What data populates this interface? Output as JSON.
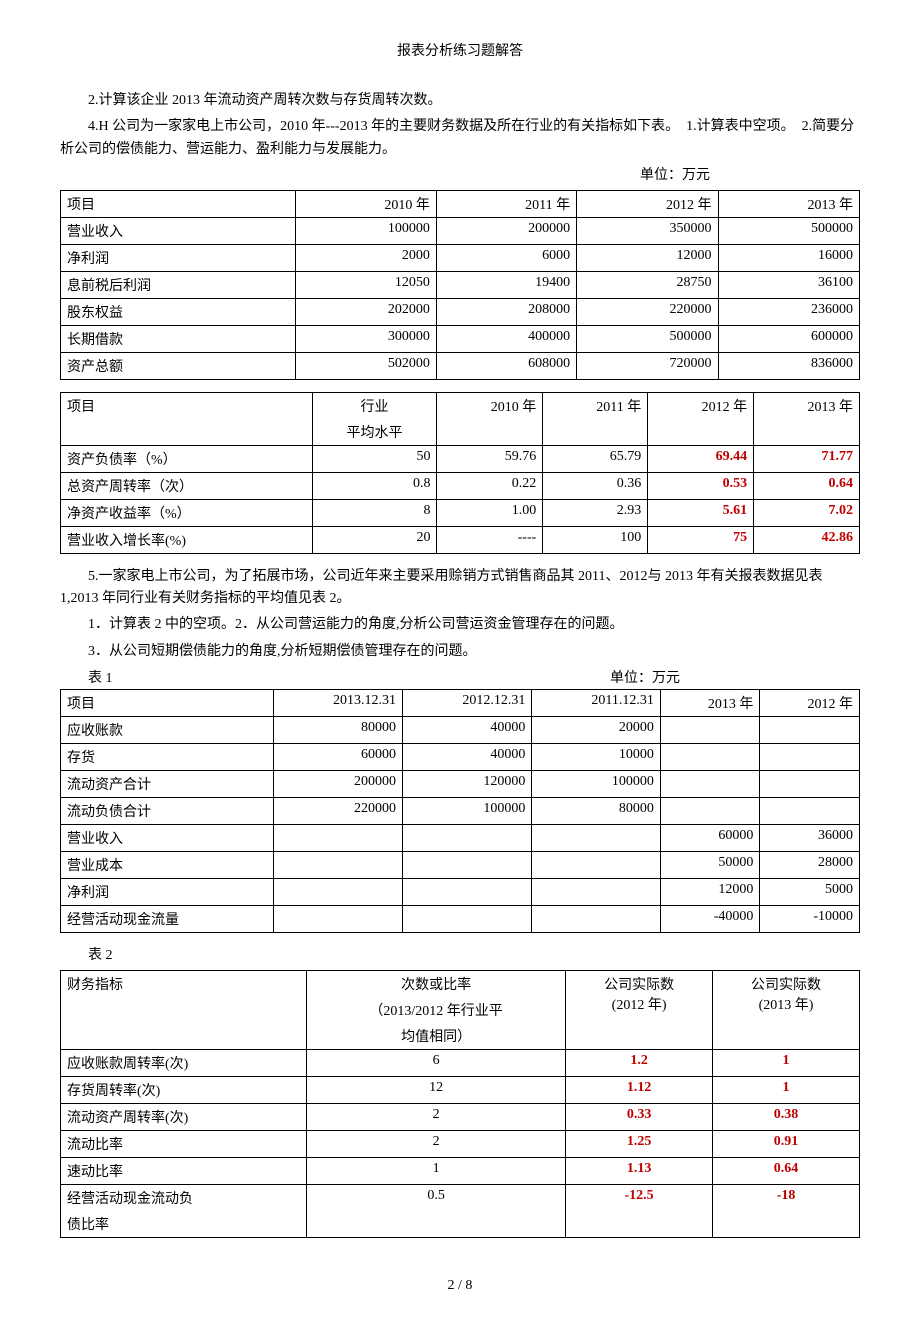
{
  "title": "报表分析练习题解答",
  "p1": "2.计算该企业 2013 年流动资产周转次数与存货周转次数。",
  "p2": "4.H 公司为一家家电上市公司，2010 年---2013 年的主要财务数据及所在行业的有关指标如下表。　1.计算表中空项。　2.简要分析公司的偿债能力、营运能力、盈利能力与发展能力。",
  "unit1": "单位：万元",
  "t1": {
    "h": [
      "项目",
      "2010 年",
      "2011 年",
      "2012 年",
      "2013 年"
    ],
    "rows": [
      [
        "营业收入",
        "100000",
        "200000",
        "350000",
        "500000"
      ],
      [
        "净利润",
        "2000",
        "6000",
        "12000",
        "16000"
      ],
      [
        "息前税后利润",
        "12050",
        "19400",
        "28750",
        "36100"
      ],
      [
        "股东权益",
        "202000",
        "208000",
        "220000",
        "236000"
      ],
      [
        "长期借款",
        "300000",
        "400000",
        "500000",
        "600000"
      ],
      [
        "资产总额",
        "502000",
        "608000",
        "720000",
        "836000"
      ]
    ]
  },
  "t2": {
    "h": [
      "项目",
      "行业",
      "2010 年",
      "2011 年",
      "2012 年",
      "2013 年"
    ],
    "h2": "平均水平",
    "rows": [
      {
        "c": [
          "资产负债率（%）",
          "50",
          "59.76",
          "65.79",
          "69.44",
          "71.77"
        ],
        "redFrom": 4
      },
      {
        "c": [
          "总资产周转率（次）",
          "0.8",
          "0.22",
          "0.36",
          "0.53",
          "0.64"
        ],
        "redFrom": 4
      },
      {
        "c": [
          "净资产收益率（%）",
          "8",
          "1.00",
          "2.93",
          "5.61",
          "7.02"
        ],
        "redFrom": 4
      },
      {
        "c": [
          "营业收入增长率(%)",
          "20",
          "----",
          "100",
          "75",
          "42.86"
        ],
        "redFrom": 4
      }
    ]
  },
  "p3": "5.一家家电上市公司，为了拓展市场，公司近年来主要采用赊销方式销售商品其 2011、2012与 2013 年有关报表数据见表 1,2013 年同行业有关财务指标的平均值见表 2。",
  "p4": "1．计算表 2 中的空项。2．从公司营运能力的角度,分析公司营运资金管理存在的问题。",
  "p5": "3．从公司短期偿债能力的角度,分析短期偿债管理存在的问题。",
  "t3labelL": "表 1",
  "t3labelR": "单位：万元",
  "t3": {
    "h": [
      "项目",
      "2013.12.31",
      "2012.12.31",
      "2011.12.31",
      "2013 年",
      "2012 年"
    ],
    "rows": [
      [
        "应收账款",
        "80000",
        "40000",
        "20000",
        "",
        ""
      ],
      [
        "存货",
        "60000",
        "40000",
        "10000",
        "",
        ""
      ],
      [
        "流动资产合计",
        "200000",
        "120000",
        "100000",
        "",
        ""
      ],
      [
        "流动负债合计",
        "220000",
        "100000",
        "80000",
        "",
        ""
      ],
      [
        "营业收入",
        "",
        "",
        "",
        "60000",
        "36000"
      ],
      [
        "营业成本",
        "",
        "",
        "",
        "50000",
        "28000"
      ],
      [
        "净利润",
        "",
        "",
        "",
        "12000",
        "5000"
      ],
      [
        "经营活动现金流量",
        "",
        "",
        "",
        "-40000",
        "-10000"
      ]
    ]
  },
  "t4label": "表 2",
  "t4": {
    "h1": [
      "财务指标",
      "次数或比率",
      "公司实际数",
      "公司实际数"
    ],
    "h2": [
      "（2013/2012 年行业平",
      "(2012 年)",
      "(2013 年)"
    ],
    "h3": "均值相同）",
    "rows": [
      {
        "c": [
          "应收账款周转率(次)",
          "6",
          "1.2",
          "1"
        ]
      },
      {
        "c": [
          "存货周转率(次)",
          "12",
          "1.12",
          "1"
        ]
      },
      {
        "c": [
          "流动资产周转率(次)",
          "2",
          "0.33",
          "0.38"
        ]
      },
      {
        "c": [
          "流动比率",
          "2",
          "1.25",
          "0.91"
        ]
      },
      {
        "c": [
          "速动比率",
          "1",
          "1.13",
          "0.64"
        ]
      },
      {
        "c": [
          "经营活动现金流动负",
          "0.5",
          "-12.5",
          "-18"
        ]
      }
    ],
    "lastRowCont": "债比率"
  },
  "footer": "2 / 8"
}
